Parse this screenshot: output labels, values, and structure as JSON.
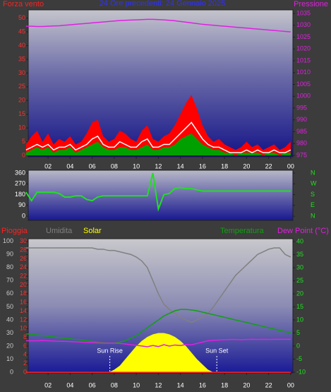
{
  "chart_data": [
    {
      "type": "area",
      "title": "24 Ore precedenti: 24 Gennaio 2025",
      "y_label": "Forza vento",
      "y2_label": "Pressione",
      "x": [
        0,
        0.5,
        1,
        1.5,
        2,
        2.5,
        3,
        3.5,
        4,
        4.5,
        5,
        5.5,
        6,
        6.5,
        7,
        7.5,
        8,
        8.5,
        9,
        9.5,
        10,
        10.5,
        11,
        11.5,
        12,
        12.5,
        13,
        13.5,
        14,
        14.5,
        15,
        15.5,
        16,
        16.5,
        17,
        17.5,
        18,
        18.5,
        19,
        19.5,
        20,
        20.5,
        21,
        21.5,
        22,
        22.5,
        23,
        23.5,
        24
      ],
      "xlim": [
        0.2,
        24.2
      ],
      "xticks": [
        {
          "value": 2,
          "label": "02"
        },
        {
          "value": 4,
          "label": "04"
        },
        {
          "value": 6,
          "label": "06"
        },
        {
          "value": 8,
          "label": "08"
        },
        10,
        12,
        14,
        16,
        18,
        20,
        22,
        {
          "value": 24,
          "label": "00"
        }
      ],
      "ylim": [
        -0.5,
        53
      ],
      "yticks": [
        0,
        5,
        10,
        15,
        20,
        25,
        30,
        35,
        40,
        45,
        50
      ],
      "y2lim": [
        974.4,
        1036.5
      ],
      "y2ticks": [
        975,
        980,
        985,
        990,
        995,
        1000,
        1005,
        1010,
        1015,
        1020,
        1025,
        1030,
        1035
      ],
      "series": [
        {
          "color": "#ff0000",
          "style": "area",
          "values": [
            4,
            7,
            9,
            5,
            8,
            4,
            6,
            5,
            7,
            4,
            5,
            8,
            12,
            13,
            7,
            5,
            6,
            9,
            8,
            6,
            5,
            9,
            11,
            6,
            5,
            7,
            8,
            11,
            15,
            19,
            22,
            17,
            11,
            7,
            5,
            6,
            4,
            3,
            2,
            3,
            5,
            3,
            4,
            2,
            3,
            4,
            2,
            3,
            5
          ]
        },
        {
          "color": "#00a000",
          "style": "area",
          "values": [
            1,
            2,
            3,
            2,
            3,
            1,
            2,
            2,
            3,
            1,
            2,
            3,
            4,
            5,
            3,
            2,
            2,
            3,
            3,
            2,
            2,
            3,
            4,
            2,
            2,
            3,
            3,
            4,
            6,
            7,
            8,
            6,
            4,
            3,
            2,
            2,
            1,
            1,
            0,
            1,
            1,
            1,
            1,
            0,
            1,
            1,
            0,
            1,
            1
          ]
        },
        {
          "color": "#ffffff",
          "style": "line",
          "values": [
            2,
            3,
            4,
            3,
            4,
            2,
            3,
            3,
            4,
            2,
            3,
            4,
            6,
            7,
            4,
            3,
            3,
            5,
            4,
            3,
            3,
            5,
            6,
            3,
            3,
            4,
            4,
            6,
            8,
            10,
            12,
            9,
            6,
            4,
            3,
            3,
            2,
            1,
            1,
            1,
            2,
            1,
            2,
            1,
            1,
            2,
            1,
            1,
            2
          ]
        },
        {
          "color": "#e020e0",
          "style": "line",
          "axis": "y2",
          "values": [
            1029.6,
            1029.6,
            1029.5,
            1029.5,
            1029.6,
            1029.7,
            1029.8,
            1030,
            1030.2,
            1030.4,
            1030.6,
            1030.8,
            1031,
            1031.2,
            1031.4,
            1031.6,
            1031.8,
            1032,
            1032.1,
            1032.2,
            1032.3,
            1032.4,
            1032.5,
            1032.5,
            1032.4,
            1032.3,
            1032.1,
            1031.9,
            1031.6,
            1031.3,
            1031,
            1030.7,
            1030.4,
            1030.2,
            1030,
            1029.8,
            1029.6,
            1029.4,
            1029.2,
            1029,
            1028.8,
            1028.6,
            1028.4,
            1028.2,
            1028,
            1027.8,
            1027.6,
            1027.4,
            1027.2
          ]
        }
      ]
    },
    {
      "type": "line",
      "x": [
        0,
        0.5,
        1,
        1.5,
        2,
        2.5,
        3,
        3.5,
        4,
        4.5,
        5,
        5.5,
        6,
        6.5,
        7,
        7.5,
        8,
        8.5,
        9,
        9.5,
        10,
        10.5,
        11,
        11.5,
        12,
        12.5,
        13,
        13.5,
        14,
        14.5,
        15,
        15.5,
        16,
        16.5,
        17,
        17.5,
        18,
        18.5,
        19,
        19.5,
        20,
        20.5,
        21,
        21.5,
        22,
        22.5,
        23,
        23.5,
        24
      ],
      "xlim": [
        0.2,
        24.2
      ],
      "ylim": [
        -35,
        384
      ],
      "yticks": [
        0,
        90,
        180,
        270,
        360
      ],
      "y2lim": [
        -35,
        384
      ],
      "y2ticks": [
        {
          "value": 360,
          "label": "N"
        },
        {
          "value": 270,
          "label": "W"
        },
        {
          "value": 180,
          "label": "S"
        },
        {
          "value": 90,
          "label": "E"
        },
        {
          "value": 0,
          "label": "N"
        }
      ],
      "series": [
        {
          "color": "#20e020",
          "style": "line",
          "values": [
            200,
            130,
            200,
            200,
            200,
            200,
            190,
            160,
            160,
            170,
            170,
            140,
            130,
            160,
            170,
            170,
            170,
            170,
            170,
            170,
            170,
            170,
            170,
            360,
            60,
            180,
            190,
            230,
            240,
            230,
            230,
            220,
            210,
            210,
            210,
            210,
            210,
            210,
            210,
            210,
            210,
            210,
            210,
            210,
            210,
            210,
            210,
            210,
            210
          ]
        }
      ]
    },
    {
      "type": "area",
      "x": [
        0,
        0.5,
        1,
        1.5,
        2,
        2.5,
        3,
        3.5,
        4,
        4.5,
        5,
        5.5,
        6,
        6.5,
        7,
        7.5,
        8,
        8.5,
        9,
        9.5,
        10,
        10.5,
        11,
        11.5,
        12,
        12.5,
        13,
        13.5,
        14,
        14.5,
        15,
        15.5,
        16,
        16.5,
        17,
        17.5,
        18,
        18.5,
        19,
        19.5,
        20,
        20.5,
        21,
        21.5,
        22,
        22.5,
        23,
        23.5,
        24
      ],
      "xlim": [
        0.2,
        24.2
      ],
      "xticks": [
        {
          "value": 2,
          "label": "02"
        },
        {
          "value": 4,
          "label": "04"
        },
        {
          "value": 6,
          "label": "06"
        },
        {
          "value": 8,
          "label": "08"
        },
        10,
        12,
        14,
        16,
        18,
        20,
        22,
        {
          "value": 24,
          "label": "00"
        }
      ],
      "ylim": [
        -0.5,
        102
      ],
      "yticks": [
        0,
        10,
        20,
        30,
        40,
        50,
        60,
        70,
        80,
        90,
        100
      ],
      "y2lim": [
        -10.3,
        41.1
      ],
      "y2ticks": [
        -10,
        -5,
        0,
        5,
        10,
        15,
        20,
        25,
        30,
        35,
        40
      ],
      "y3lim": [
        -0.15,
        30.6
      ],
      "y3ticks": [
        0,
        2,
        4,
        6,
        8,
        10,
        12,
        14,
        16,
        18,
        20,
        22,
        24,
        26,
        28,
        30
      ],
      "series": [
        {
          "name": "Pioggia",
          "color": "#ff2020",
          "style": "line",
          "axis": "y3",
          "values": [
            0,
            0,
            0,
            0,
            0,
            0,
            0,
            0,
            0,
            0,
            0,
            0,
            0,
            0,
            0,
            0,
            0,
            0,
            0,
            0,
            0,
            0,
            0,
            0,
            0,
            0,
            0,
            0,
            0,
            0,
            0,
            0,
            0,
            0,
            0,
            0,
            0,
            0,
            0,
            0,
            0,
            0,
            0,
            0,
            0,
            0,
            0,
            0,
            0
          ]
        },
        {
          "name": "Umidita",
          "color": "#808080",
          "style": "line",
          "values": [
            95,
            95,
            95,
            95,
            95,
            95,
            95,
            95,
            95,
            95,
            95,
            95,
            95,
            94,
            94,
            93,
            93,
            92,
            91,
            90,
            88,
            85,
            80,
            70,
            60,
            52,
            48,
            45,
            42,
            40,
            38,
            40,
            42,
            45,
            50,
            56,
            62,
            68,
            74,
            78,
            82,
            86,
            90,
            92,
            94,
            95,
            95,
            90,
            88
          ]
        },
        {
          "name": "Solar",
          "color": "#ffff00",
          "style": "area",
          "values": [
            0,
            0,
            0,
            0,
            0,
            0,
            0,
            0,
            0,
            0,
            0,
            0,
            0,
            0,
            0,
            0,
            2,
            5,
            10,
            15,
            20,
            24,
            27,
            29,
            30,
            30,
            29,
            27,
            24,
            20,
            15,
            10,
            6,
            2,
            0,
            0,
            0,
            0,
            0,
            0,
            0,
            0,
            0,
            0,
            0,
            0,
            0,
            0,
            0
          ]
        },
        {
          "name": "Temperatura",
          "color": "#10a010",
          "style": "line",
          "axis": "y2",
          "values": [
            4.7,
            4.5,
            4.2,
            4,
            3.8,
            3.5,
            3.2,
            3,
            2.8,
            2.5,
            2.3,
            2,
            1.8,
            1.5,
            1.3,
            1.2,
            1.2,
            1.5,
            2,
            3,
            4,
            5.5,
            7,
            8.5,
            10,
            11.5,
            12.5,
            13.5,
            14,
            14,
            13.8,
            13.5,
            13,
            12.5,
            12,
            11.5,
            11,
            10.5,
            10,
            9.5,
            9,
            8.5,
            8,
            7.5,
            7,
            6.5,
            6,
            5.5,
            5.2
          ]
        },
        {
          "name": "Dew Point (°C)",
          "color": "#e020e0",
          "style": "line",
          "axis": "y2",
          "values": [
            2,
            2,
            2,
            2.1,
            2,
            1.9,
            1.8,
            1.8,
            1.7,
            1.6,
            1.5,
            1.4,
            1.3,
            1.2,
            1.1,
            1.1,
            1.1,
            1,
            0.8,
            0.5,
            0.3,
            0,
            -0.3,
            0.2,
            -0.2,
            0.5,
            0,
            0.4,
            0.2,
            0.6,
            0.5,
            1,
            1.5,
            2,
            2.2,
            2.3,
            2.4,
            2.5,
            2.5,
            2.4,
            2.5,
            2.6,
            2.5,
            2.6,
            2.5,
            2.6,
            2.6,
            2.6,
            2.6
          ]
        }
      ],
      "annotations": [
        {
          "text": "Sun Rise",
          "x": 7.6
        },
        {
          "text": "Sun Set",
          "x": 17.3
        }
      ]
    }
  ]
}
